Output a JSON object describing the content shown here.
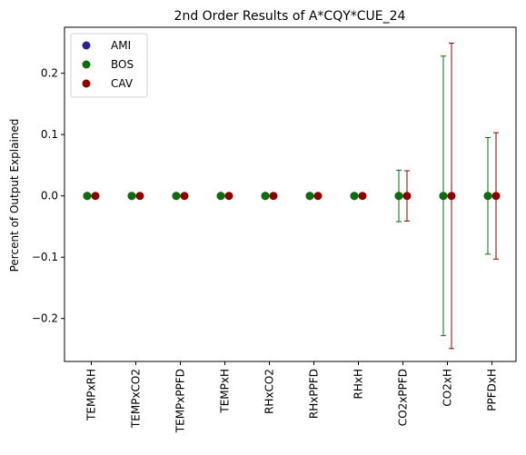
{
  "chart_data": {
    "type": "scatter",
    "title": "2nd Order Results of A*CQY*CUE_24",
    "xlabel": "",
    "ylabel": "Percent of Output Explained",
    "ylim": [
      -0.27,
      0.275
    ],
    "yticks": [
      -0.2,
      -0.1,
      0.0,
      0.1,
      0.2
    ],
    "ytick_labels": [
      "−0.2",
      "−0.1",
      "0.0",
      "0.1",
      "0.2"
    ],
    "categories": [
      "TEMPxRH",
      "TEMPxCO2",
      "TEMPxPPFD",
      "TEMPxH",
      "RHxCO2",
      "RHxPPFD",
      "RHxH",
      "CO2xPPFD",
      "CO2xH",
      "PPFDxH"
    ],
    "grid": false,
    "legend_position": "top-left",
    "series": [
      {
        "name": "AMI",
        "color": "#2a1f9a",
        "offset": -1,
        "values": [
          0,
          0,
          0,
          0,
          0,
          0,
          0,
          0,
          0,
          0
        ],
        "errors": [
          0,
          0,
          0,
          0,
          0,
          0,
          0,
          0,
          0,
          0
        ]
      },
      {
        "name": "BOS",
        "color": "#0b6e0b",
        "offset": -1,
        "values": [
          0,
          0,
          0,
          0,
          0,
          0,
          0,
          0,
          0,
          0
        ],
        "errors": [
          0,
          0,
          0,
          0,
          0,
          0,
          0,
          0.042,
          0.228,
          0.095
        ]
      },
      {
        "name": "CAV",
        "color": "#8b0000",
        "offset": 0,
        "values": [
          0,
          0,
          0,
          0,
          0,
          0,
          0,
          0,
          0,
          0
        ],
        "errors": [
          0,
          0,
          0,
          0,
          0,
          0,
          0,
          0.041,
          0.249,
          0.103
        ]
      }
    ]
  }
}
